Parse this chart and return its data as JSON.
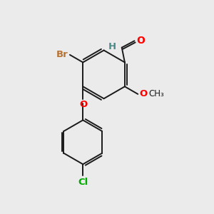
{
  "bg_color": "#ebebeb",
  "bond_color": "#1a1a1a",
  "bond_width": 1.4,
  "atom_colors": {
    "O": "#ff0000",
    "Br": "#b87333",
    "Cl": "#00aa00",
    "C": "#1a1a1a",
    "H": "#4a8a8a"
  },
  "font_size": 8.5,
  "figsize": [
    3.0,
    3.0
  ],
  "dpi": 100
}
